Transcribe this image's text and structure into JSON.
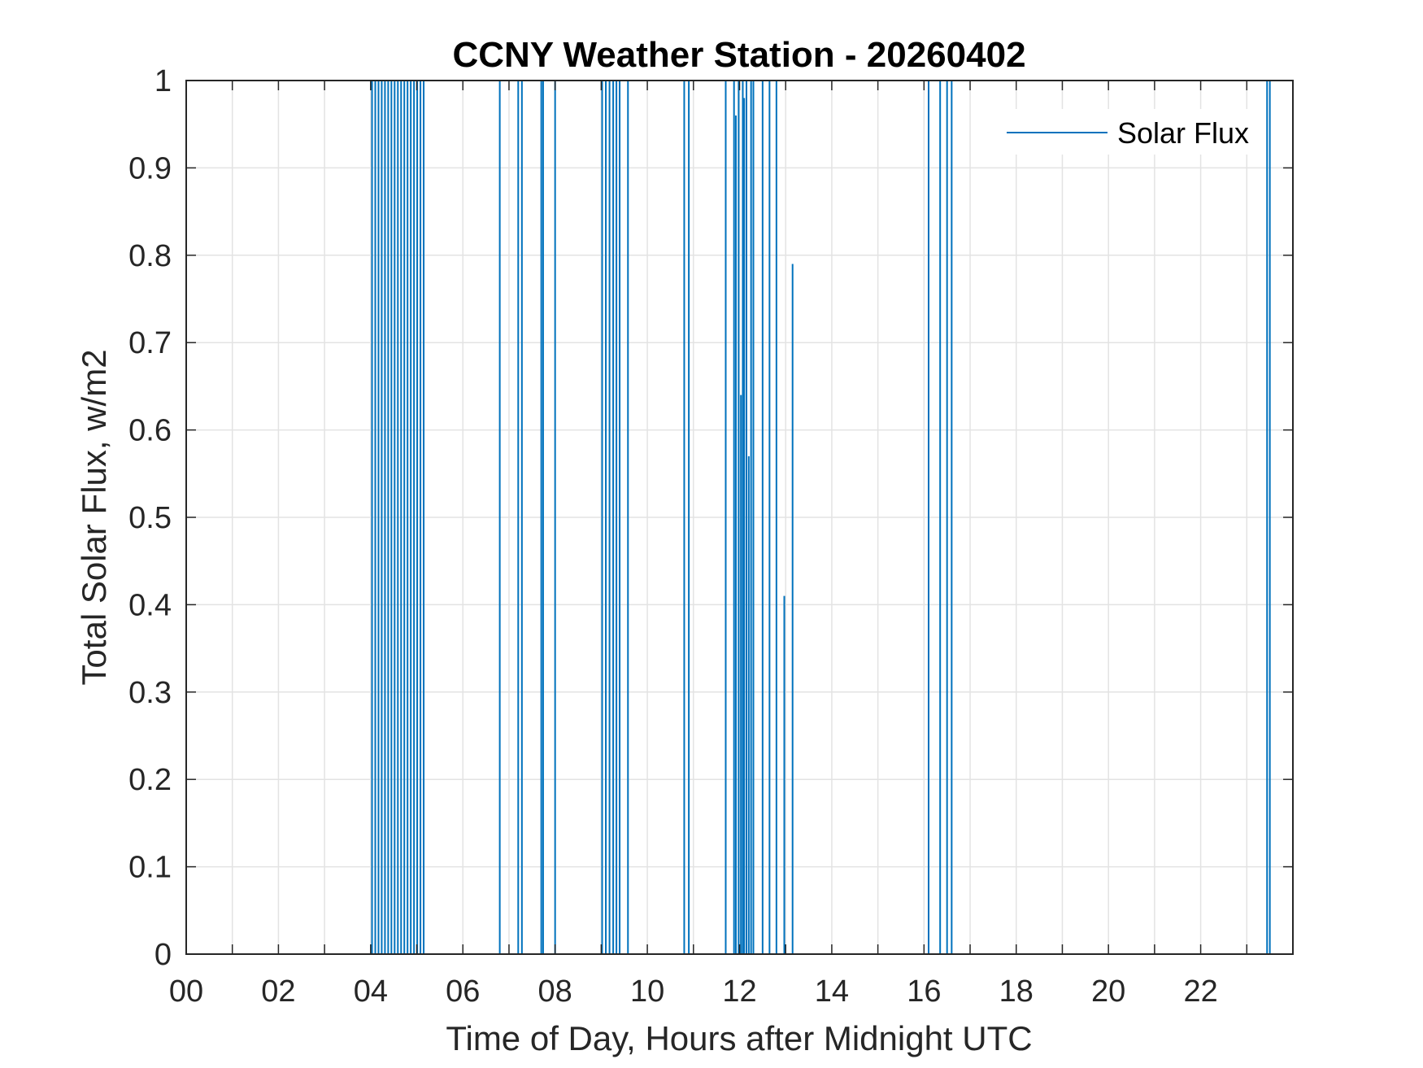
{
  "chart_data": {
    "type": "line",
    "title": "CCNY Weather Station - 20260402",
    "xlabel": "Time of Day, Hours after Midnight UTC",
    "ylabel": "Total Solar Flux, w/m2",
    "xlim": [
      0,
      24
    ],
    "ylim": [
      0,
      1
    ],
    "grid": true,
    "legend_position": "top-right",
    "x_ticks": [
      0,
      2,
      4,
      6,
      8,
      10,
      12,
      14,
      16,
      18,
      20,
      22
    ],
    "x_tick_labels": [
      "00",
      "02",
      "04",
      "06",
      "08",
      "10",
      "12",
      "14",
      "16",
      "18",
      "20",
      "22"
    ],
    "y_ticks": [
      0,
      0.1,
      0.2,
      0.3,
      0.4,
      0.5,
      0.6,
      0.7,
      0.8,
      0.9,
      1
    ],
    "y_tick_labels": [
      "0",
      "0.1",
      "0.2",
      "0.3",
      "0.4",
      "0.5",
      "0.6",
      "0.7",
      "0.8",
      "0.9",
      "1"
    ],
    "series": [
      {
        "name": "Solar Flux",
        "color": "#0072BD",
        "spikes": [
          {
            "x": 4.03,
            "y": 1
          },
          {
            "x": 4.1,
            "y": 1
          },
          {
            "x": 4.17,
            "y": 1
          },
          {
            "x": 4.24,
            "y": 1
          },
          {
            "x": 4.31,
            "y": 1
          },
          {
            "x": 4.38,
            "y": 1
          },
          {
            "x": 4.45,
            "y": 1
          },
          {
            "x": 4.52,
            "y": 1
          },
          {
            "x": 4.59,
            "y": 1
          },
          {
            "x": 4.66,
            "y": 1
          },
          {
            "x": 4.73,
            "y": 1
          },
          {
            "x": 4.8,
            "y": 1
          },
          {
            "x": 4.87,
            "y": 1
          },
          {
            "x": 4.94,
            "y": 1
          },
          {
            "x": 5.01,
            "y": 1
          },
          {
            "x": 5.08,
            "y": 1
          },
          {
            "x": 5.15,
            "y": 1
          },
          {
            "x": 6.8,
            "y": 1
          },
          {
            "x": 7.2,
            "y": 1
          },
          {
            "x": 7.28,
            "y": 1
          },
          {
            "x": 7.7,
            "y": 1
          },
          {
            "x": 7.74,
            "y": 1
          },
          {
            "x": 8.0,
            "y": 1
          },
          {
            "x": 9.02,
            "y": 1
          },
          {
            "x": 9.1,
            "y": 1
          },
          {
            "x": 9.18,
            "y": 1
          },
          {
            "x": 9.26,
            "y": 1
          },
          {
            "x": 9.33,
            "y": 1
          },
          {
            "x": 9.4,
            "y": 1
          },
          {
            "x": 9.58,
            "y": 1
          },
          {
            "x": 10.8,
            "y": 1
          },
          {
            "x": 10.9,
            "y": 1
          },
          {
            "x": 11.7,
            "y": 1
          },
          {
            "x": 11.88,
            "y": 1
          },
          {
            "x": 11.92,
            "y": 0.96
          },
          {
            "x": 11.98,
            "y": 1
          },
          {
            "x": 12.03,
            "y": 0.64
          },
          {
            "x": 12.07,
            "y": 1
          },
          {
            "x": 12.1,
            "y": 0.98
          },
          {
            "x": 12.15,
            "y": 1
          },
          {
            "x": 12.2,
            "y": 0.57
          },
          {
            "x": 12.25,
            "y": 1
          },
          {
            "x": 12.3,
            "y": 1
          },
          {
            "x": 12.5,
            "y": 1
          },
          {
            "x": 12.65,
            "y": 1
          },
          {
            "x": 12.8,
            "y": 1
          },
          {
            "x": 12.97,
            "y": 0.41
          },
          {
            "x": 13.15,
            "y": 0.79
          },
          {
            "x": 16.1,
            "y": 1
          },
          {
            "x": 16.35,
            "y": 1
          },
          {
            "x": 16.5,
            "y": 1
          },
          {
            "x": 16.6,
            "y": 1
          },
          {
            "x": 23.44,
            "y": 1
          },
          {
            "x": 23.5,
            "y": 1
          }
        ]
      }
    ]
  }
}
